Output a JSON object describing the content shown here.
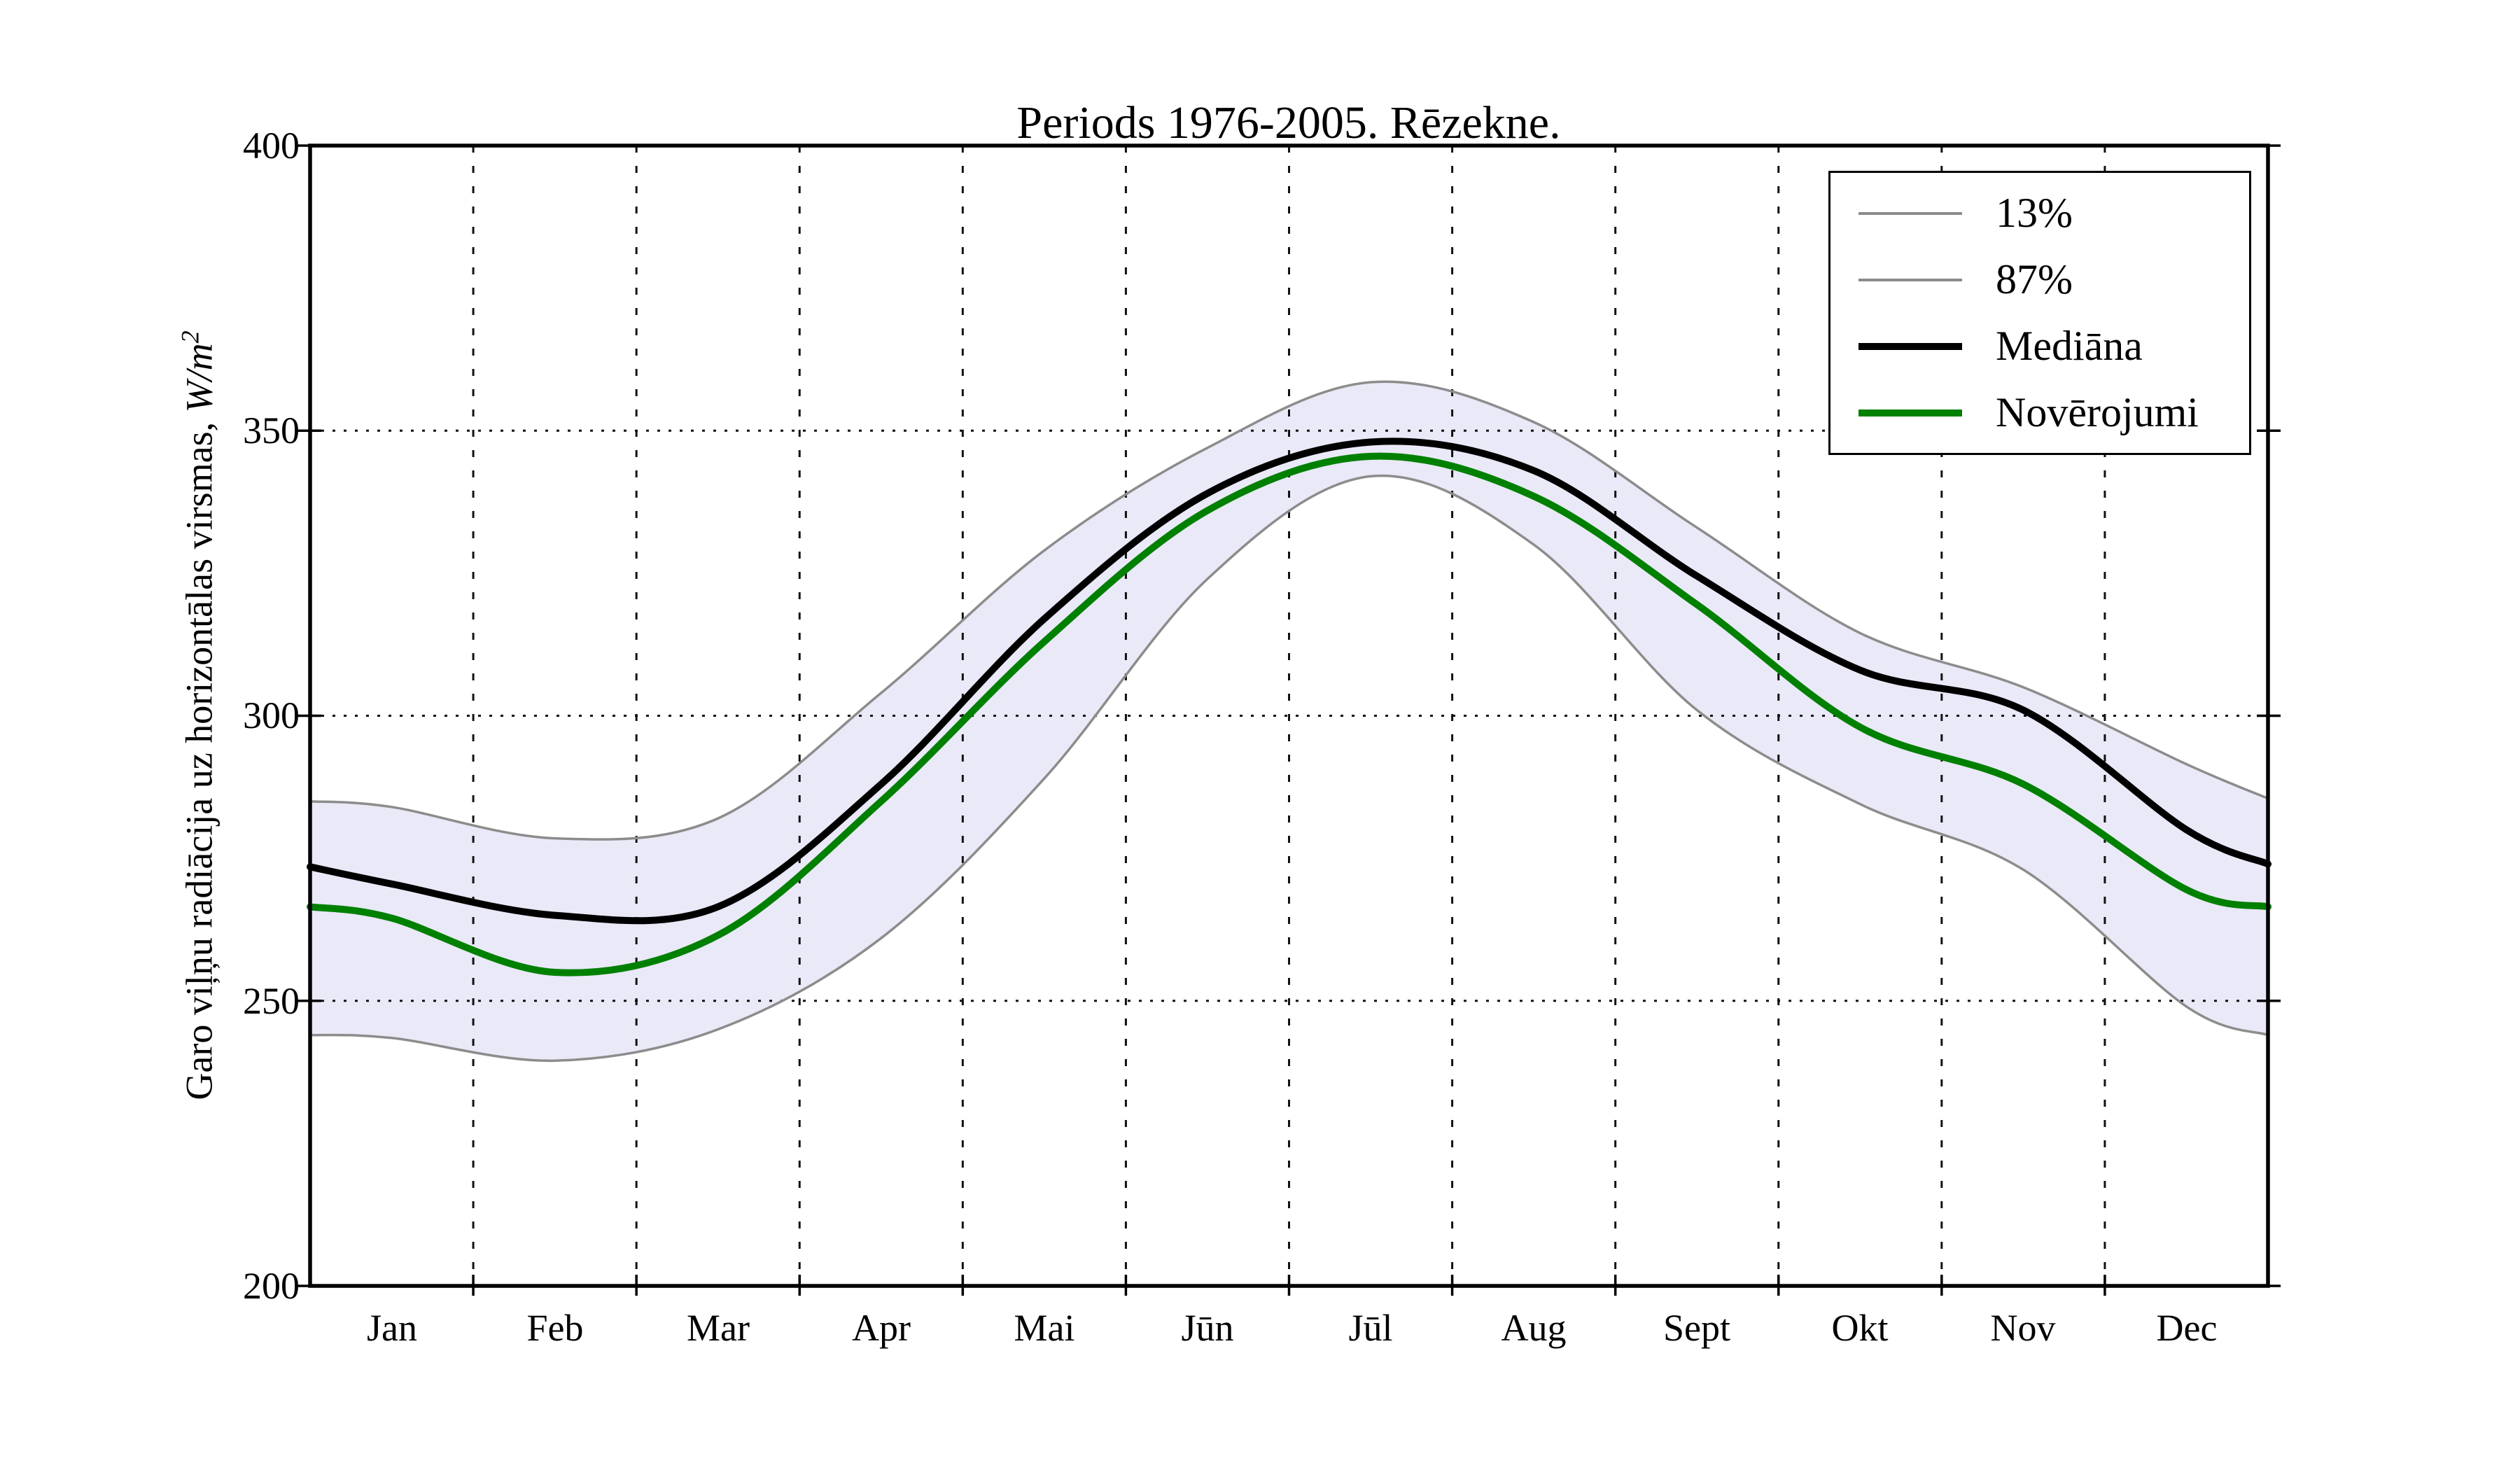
{
  "title": "Periods 1976-2005. Rēzekne.",
  "axes": {
    "ylabel_prefix": "Garo viļņu radiācija uz horizontālas virsmas, ",
    "ylabel_math": "W/m",
    "ylabel_sup": "2",
    "y_ticks": [
      "400",
      "350",
      "300",
      "250",
      "200"
    ],
    "x_categories": [
      "Jan",
      "Feb",
      "Mar",
      "Apr",
      "Mai",
      "Jūn",
      "Jūl",
      "Aug",
      "Sept",
      "Okt",
      "Nov",
      "Dec"
    ]
  },
  "legend": {
    "items": [
      {
        "label": "13%",
        "color": "#8c8c8c",
        "thickness": 4
      },
      {
        "label": "87%",
        "color": "#8c8c8c",
        "thickness": 4
      },
      {
        "label": "Mediāna",
        "color": "#000000",
        "thickness": 10
      },
      {
        "label": "Novērojumi",
        "color": "#008000",
        "thickness": 10
      }
    ]
  },
  "chart_data": {
    "type": "line",
    "title": "Periods 1976-2005. Rēzekne.",
    "xlabel": "",
    "ylabel": "Garo viļņu radiācija uz horizontālas virsmas, W/m2",
    "ylim": [
      200,
      400
    ],
    "y_gridlines": [
      350,
      300,
      250
    ],
    "grid": true,
    "legend_position": "upper right",
    "categories": [
      "Jan",
      "Feb",
      "Mar",
      "Apr",
      "Mai",
      "Jūn",
      "Jūl",
      "Aug",
      "Sept",
      "Okt",
      "Nov",
      "Dec"
    ],
    "x_month_units": [
      0,
      0.5,
      1.5,
      2.5,
      3.5,
      4.5,
      5.5,
      6.5,
      7.5,
      8.5,
      9.5,
      10.5,
      11.5,
      12
    ],
    "band": {
      "upper": "87%",
      "lower": "13%",
      "fill": "#e9e9f7"
    },
    "series": [
      {
        "name": "13%",
        "color": "#8c8c8c",
        "linewidth": 3.5,
        "values": [
          244,
          243.5,
          239.5,
          245,
          261,
          289,
          324,
          342,
          330,
          301,
          284.5,
          273,
          249,
          244
        ]
      },
      {
        "name": "87%",
        "color": "#8c8c8c",
        "linewidth": 3.5,
        "values": [
          285,
          284,
          278.5,
          282,
          304,
          329,
          347,
          358.5,
          351.5,
          333,
          314.5,
          305,
          291.5,
          285.5
        ]
      },
      {
        "name": "Mediāna",
        "color": "#000000",
        "linewidth": 10,
        "values": [
          273.5,
          270.5,
          265,
          266.5,
          288,
          317,
          339,
          348,
          343,
          324.5,
          308,
          301,
          280,
          274
        ]
      },
      {
        "name": "Novērojumi",
        "color": "#008000",
        "linewidth": 10,
        "values": [
          266.5,
          264.5,
          255,
          261.5,
          285,
          313,
          336,
          345.5,
          338.5,
          319.5,
          298,
          288,
          269.5,
          266.5
        ]
      }
    ]
  }
}
